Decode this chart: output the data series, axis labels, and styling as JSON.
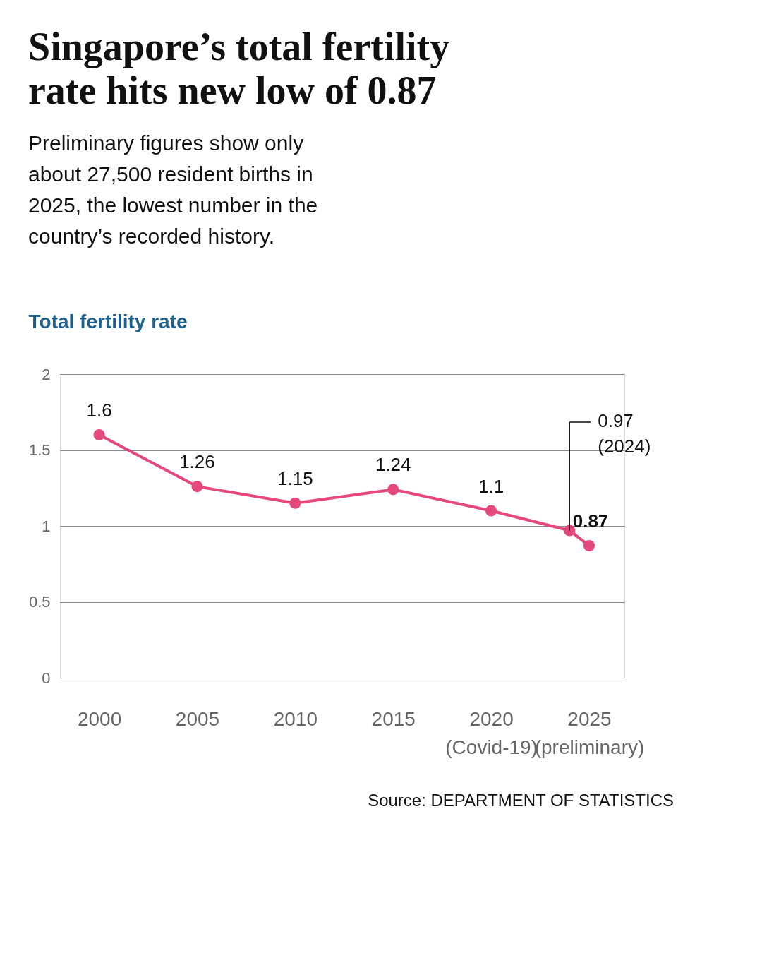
{
  "chart_data": {
    "type": "line",
    "title": "Singapore’s total fertility rate hits new low of 0.87",
    "subtitle": "Preliminary figures show only about 27,500 resident births in 2025, the lowest number in the country’s recorded history.",
    "ylabel": "Total fertility rate",
    "x": [
      2000,
      2005,
      2010,
      2015,
      2020,
      2024,
      2025
    ],
    "series": [
      {
        "color": "#e5487a",
        "values": [
          1.6,
          1.26,
          1.15,
          1.24,
          1.1,
          0.97,
          0.87
        ]
      }
    ],
    "value_labels": [
      "1.6",
      "1.26",
      "1.15",
      "1.24",
      "1.1",
      null,
      "0.87"
    ],
    "marker": "circle",
    "line_style": "solid",
    "grid": "y",
    "xlim": [
      1998,
      2026.8
    ],
    "xticks": [
      2000,
      2005,
      2010,
      2015,
      {
        "value": 2020,
        "label": "2020\n(Covid-19)"
      },
      {
        "value": 2025,
        "label": "2025\n(preliminary)"
      }
    ],
    "ylim": [
      0,
      2
    ],
    "yticks": [
      0,
      0.5,
      1,
      1.5,
      2
    ],
    "annotations": [
      "0.97\n(2024)",
      "Source: DEPARTMENT OF STATISTICS"
    ]
  }
}
